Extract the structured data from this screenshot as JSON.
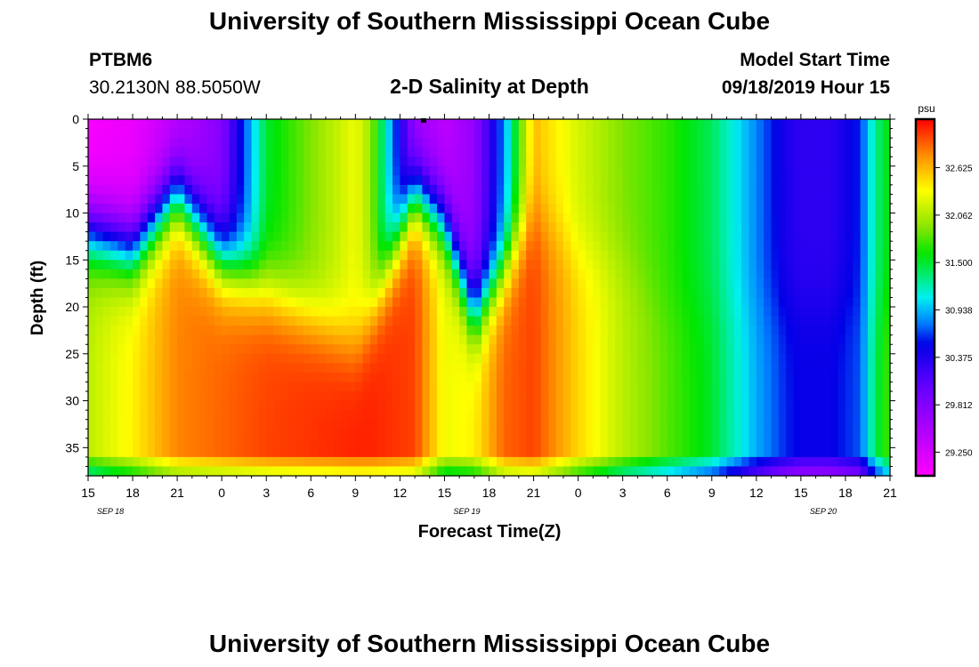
{
  "header": {
    "title_top": "University of Southern Mississippi Ocean Cube",
    "title_bottom": "University of Southern Mississippi Ocean Cube",
    "station_id": "PTBM6",
    "station_coords": "30.2130N 88.5050W",
    "plot_title": "2-D Salinity at Depth",
    "model_start_label": "Model Start Time",
    "model_start_value": "09/18/2019 Hour 15"
  },
  "chart_data": {
    "type": "heatmap",
    "title": "2-D Salinity at Depth",
    "xlabel": "Forecast Time(Z)",
    "ylabel": "Depth (ft)",
    "x_tick_labels": [
      "15",
      "18",
      "21",
      "0",
      "3",
      "6",
      "9",
      "12",
      "15",
      "18",
      "21",
      "0",
      "3",
      "6",
      "9",
      "12",
      "15",
      "18",
      "21"
    ],
    "x_day_labels": [
      "SEP 18",
      "SEP 19",
      "SEP 20"
    ],
    "x_day_label_hours": [
      1.5,
      25.5,
      49.5
    ],
    "x_range_hours": [
      0,
      54
    ],
    "y_ticks": [
      0,
      5,
      10,
      15,
      20,
      25,
      30,
      35
    ],
    "ylim": [
      0,
      38
    ],
    "colorbar": {
      "unit": "psu",
      "range": [
        28.97,
        33.2
      ],
      "tick_values": [
        29.25,
        29.812,
        30.375,
        30.938,
        31.5,
        32.062,
        32.625
      ],
      "tick_labels": [
        "29.250",
        "29.812",
        "30.375",
        "30.938",
        "31.500",
        "32.062",
        "32.625"
      ]
    },
    "field_model": {
      "description": "Approximate salinity (psu) by forecast hour from 15Z Sep 18; top = upper-layer value, bottom = deep-layer value, interface = depth (ft) of halocline",
      "hours": [
        0,
        3,
        6,
        9,
        12,
        18,
        19,
        22,
        24,
        26,
        28,
        30,
        33,
        36,
        39,
        42,
        45,
        47,
        48,
        50,
        52,
        53,
        54
      ],
      "top": [
        29.0,
        29.1,
        29.4,
        29.8,
        31.5,
        32.3,
        32.0,
        29.6,
        29.4,
        29.7,
        30.8,
        32.6,
        32.2,
        31.9,
        31.7,
        31.4,
        30.8,
        30.4,
        30.3,
        30.3,
        30.6,
        31.3,
        31.6
      ],
      "bottom": [
        32.1,
        32.4,
        32.8,
        32.9,
        33.0,
        33.1,
        33.1,
        33.0,
        32.3,
        32.4,
        32.9,
        33.0,
        32.5,
        32.1,
        31.8,
        31.5,
        30.9,
        30.6,
        30.5,
        30.5,
        30.7,
        31.4,
        31.8
      ],
      "interface": [
        12,
        14,
        8,
        15,
        18,
        24,
        21,
        8,
        11,
        21,
        16,
        10,
        14,
        15,
        20,
        20,
        20,
        20,
        20,
        20,
        20,
        20,
        20
      ]
    }
  }
}
